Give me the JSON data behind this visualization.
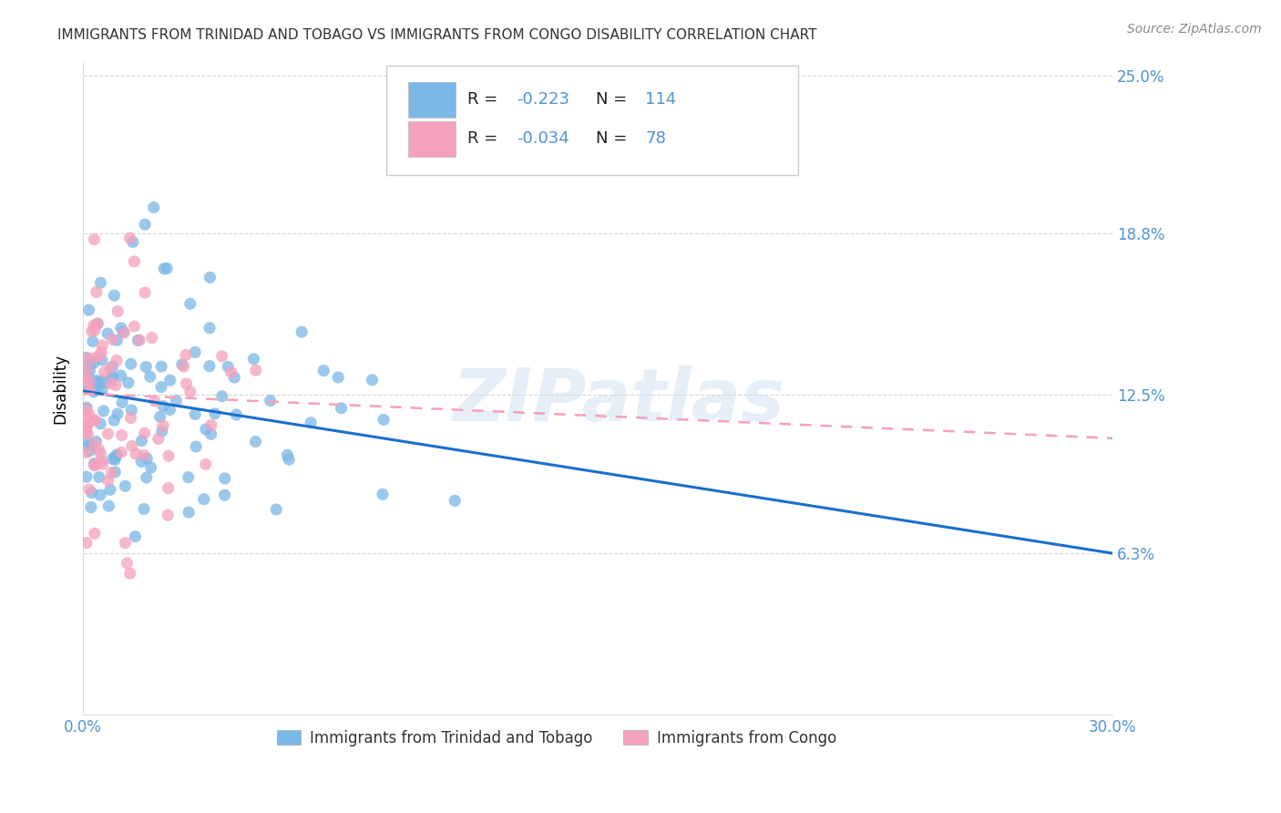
{
  "title": "IMMIGRANTS FROM TRINIDAD AND TOBAGO VS IMMIGRANTS FROM CONGO DISABILITY CORRELATION CHART",
  "source": "Source: ZipAtlas.com",
  "ylabel": "Disability",
  "yticks": [
    0.0,
    0.063,
    0.125,
    0.188,
    0.25
  ],
  "ytick_labels": [
    "",
    "6.3%",
    "12.5%",
    "18.8%",
    "25.0%"
  ],
  "watermark": "ZIPatlas",
  "legend_labels_bottom": [
    "Immigrants from Trinidad and Tobago",
    "Immigrants from Congo"
  ],
  "legend_R1": "-0.223",
  "legend_N1": "114",
  "legend_R2": "-0.034",
  "legend_N2": "78",
  "color_tt": "#7ab8e8",
  "color_congo": "#f5a0bc",
  "color_tt_trend": "#1a6fcc",
  "color_congo_trend": "#f5a0bc",
  "color_axis_labels": "#4d94d6",
  "trendline_tt_y0": 0.1265,
  "trendline_tt_y1": 0.063,
  "trendline_congo_y0": 0.1255,
  "trendline_congo_y1": 0.108,
  "xlim": [
    0.0,
    0.3
  ],
  "ylim": [
    0.0,
    0.255
  ],
  "background_color": "#ffffff",
  "grid_color": "#cccccc",
  "title_fontsize": 11,
  "source_fontsize": 10
}
